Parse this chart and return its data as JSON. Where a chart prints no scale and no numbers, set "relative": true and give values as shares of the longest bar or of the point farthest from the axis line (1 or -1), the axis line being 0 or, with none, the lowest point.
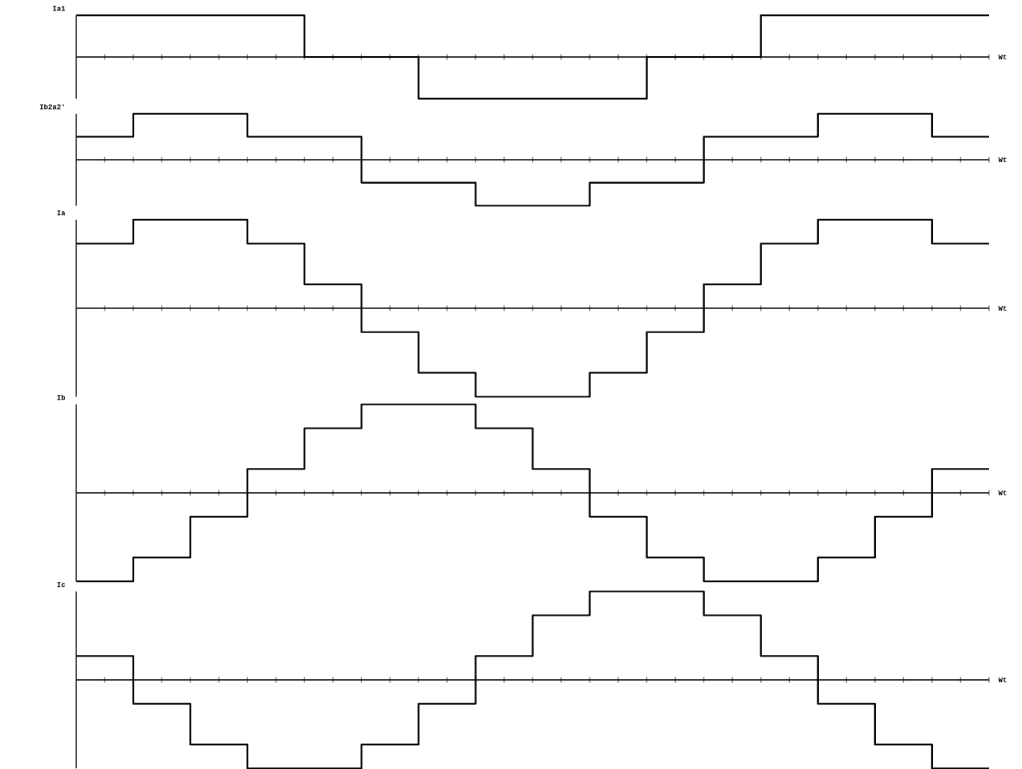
{
  "chart_data": [
    {
      "type": "step",
      "title": "Ia1",
      "xlabel": "Wt",
      "relative": true,
      "color": "#000000",
      "categories": [
        null,
        null,
        null,
        null,
        null,
        null,
        null,
        null,
        null,
        null,
        null,
        null,
        null,
        null,
        null,
        null,
        null,
        null,
        null,
        null,
        null,
        null,
        null,
        null,
        null,
        null,
        null,
        null,
        null,
        null,
        null,
        null,
        null
      ],
      "values": [
        1,
        1,
        1,
        1,
        1,
        1,
        1,
        1,
        0,
        0,
        0,
        0,
        -1,
        -1,
        -1,
        -1,
        -1,
        -1,
        -1,
        -1,
        0,
        0,
        0,
        0,
        1,
        1,
        1,
        1,
        1,
        1,
        1,
        1,
        1
      ]
    },
    {
      "type": "step",
      "title": "Ib2a2'",
      "xlabel": "Wt",
      "relative": true,
      "color": "#000000",
      "categories": [
        null,
        null,
        null,
        null,
        null,
        null,
        null,
        null,
        null,
        null,
        null,
        null,
        null,
        null,
        null,
        null,
        null,
        null,
        null,
        null,
        null,
        null,
        null,
        null,
        null,
        null,
        null,
        null,
        null,
        null,
        null,
        null,
        null
      ],
      "values": [
        0.5,
        0.5,
        1,
        1,
        1,
        1,
        0.5,
        0.5,
        0.5,
        0.5,
        -0.5,
        -0.5,
        -0.5,
        -0.5,
        -1,
        -1,
        -1,
        -1,
        -0.5,
        -0.5,
        -0.5,
        -0.5,
        0.5,
        0.5,
        0.5,
        0.5,
        1,
        1,
        1,
        1,
        0.5,
        0.5,
        0.5
      ]
    },
    {
      "type": "step",
      "title": "Ia",
      "xlabel": "Wt",
      "relative": true,
      "color": "#000000",
      "categories": [
        null,
        null,
        null,
        null,
        null,
        null,
        null,
        null,
        null,
        null,
        null,
        null,
        null,
        null,
        null,
        null,
        null,
        null,
        null,
        null,
        null,
        null,
        null,
        null,
        null,
        null,
        null,
        null,
        null,
        null,
        null,
        null,
        null
      ],
      "values": [
        0.73,
        0.73,
        1,
        1,
        1,
        1,
        0.73,
        0.73,
        0.27,
        0.27,
        -0.27,
        -0.27,
        -0.73,
        -0.73,
        -1,
        -1,
        -1,
        -1,
        -0.73,
        -0.73,
        -0.27,
        -0.27,
        0.27,
        0.27,
        0.73,
        0.73,
        1,
        1,
        1,
        1,
        0.73,
        0.73,
        0.73
      ]
    },
    {
      "type": "step",
      "title": "Ib",
      "xlabel": "Wt",
      "relative": true,
      "color": "#000000",
      "categories": [
        null,
        null,
        null,
        null,
        null,
        null,
        null,
        null,
        null,
        null,
        null,
        null,
        null,
        null,
        null,
        null,
        null,
        null,
        null,
        null,
        null,
        null,
        null,
        null,
        null,
        null,
        null,
        null,
        null,
        null,
        null,
        null,
        null
      ],
      "values": [
        -1,
        -1,
        -0.73,
        -0.73,
        -0.27,
        -0.27,
        0.27,
        0.27,
        0.73,
        0.73,
        1,
        1,
        1,
        1,
        0.73,
        0.73,
        0.27,
        0.27,
        -0.27,
        -0.27,
        -0.73,
        -0.73,
        -1,
        -1,
        -1,
        -1,
        -0.73,
        -0.73,
        -0.27,
        -0.27,
        0.27,
        0.27,
        0.27
      ]
    },
    {
      "type": "step",
      "title": "Ic",
      "xlabel": "Wt",
      "relative": true,
      "color": "#000000",
      "categories": [
        null,
        null,
        null,
        null,
        null,
        null,
        null,
        null,
        null,
        null,
        null,
        null,
        null,
        null,
        null,
        null,
        null,
        null,
        null,
        null,
        null,
        null,
        null,
        null,
        null,
        null,
        null,
        null,
        null,
        null,
        null,
        null,
        null
      ],
      "values": [
        0.27,
        0.27,
        -0.27,
        -0.27,
        -0.73,
        -0.73,
        -1,
        -1,
        -1,
        -1,
        -0.73,
        -0.73,
        -0.27,
        -0.27,
        0.27,
        0.27,
        0.73,
        0.73,
        1,
        1,
        1,
        1,
        0.73,
        0.73,
        0.27,
        0.27,
        -0.27,
        -0.27,
        -0.73,
        -0.73,
        -1,
        -1,
        -1
      ]
    }
  ]
}
